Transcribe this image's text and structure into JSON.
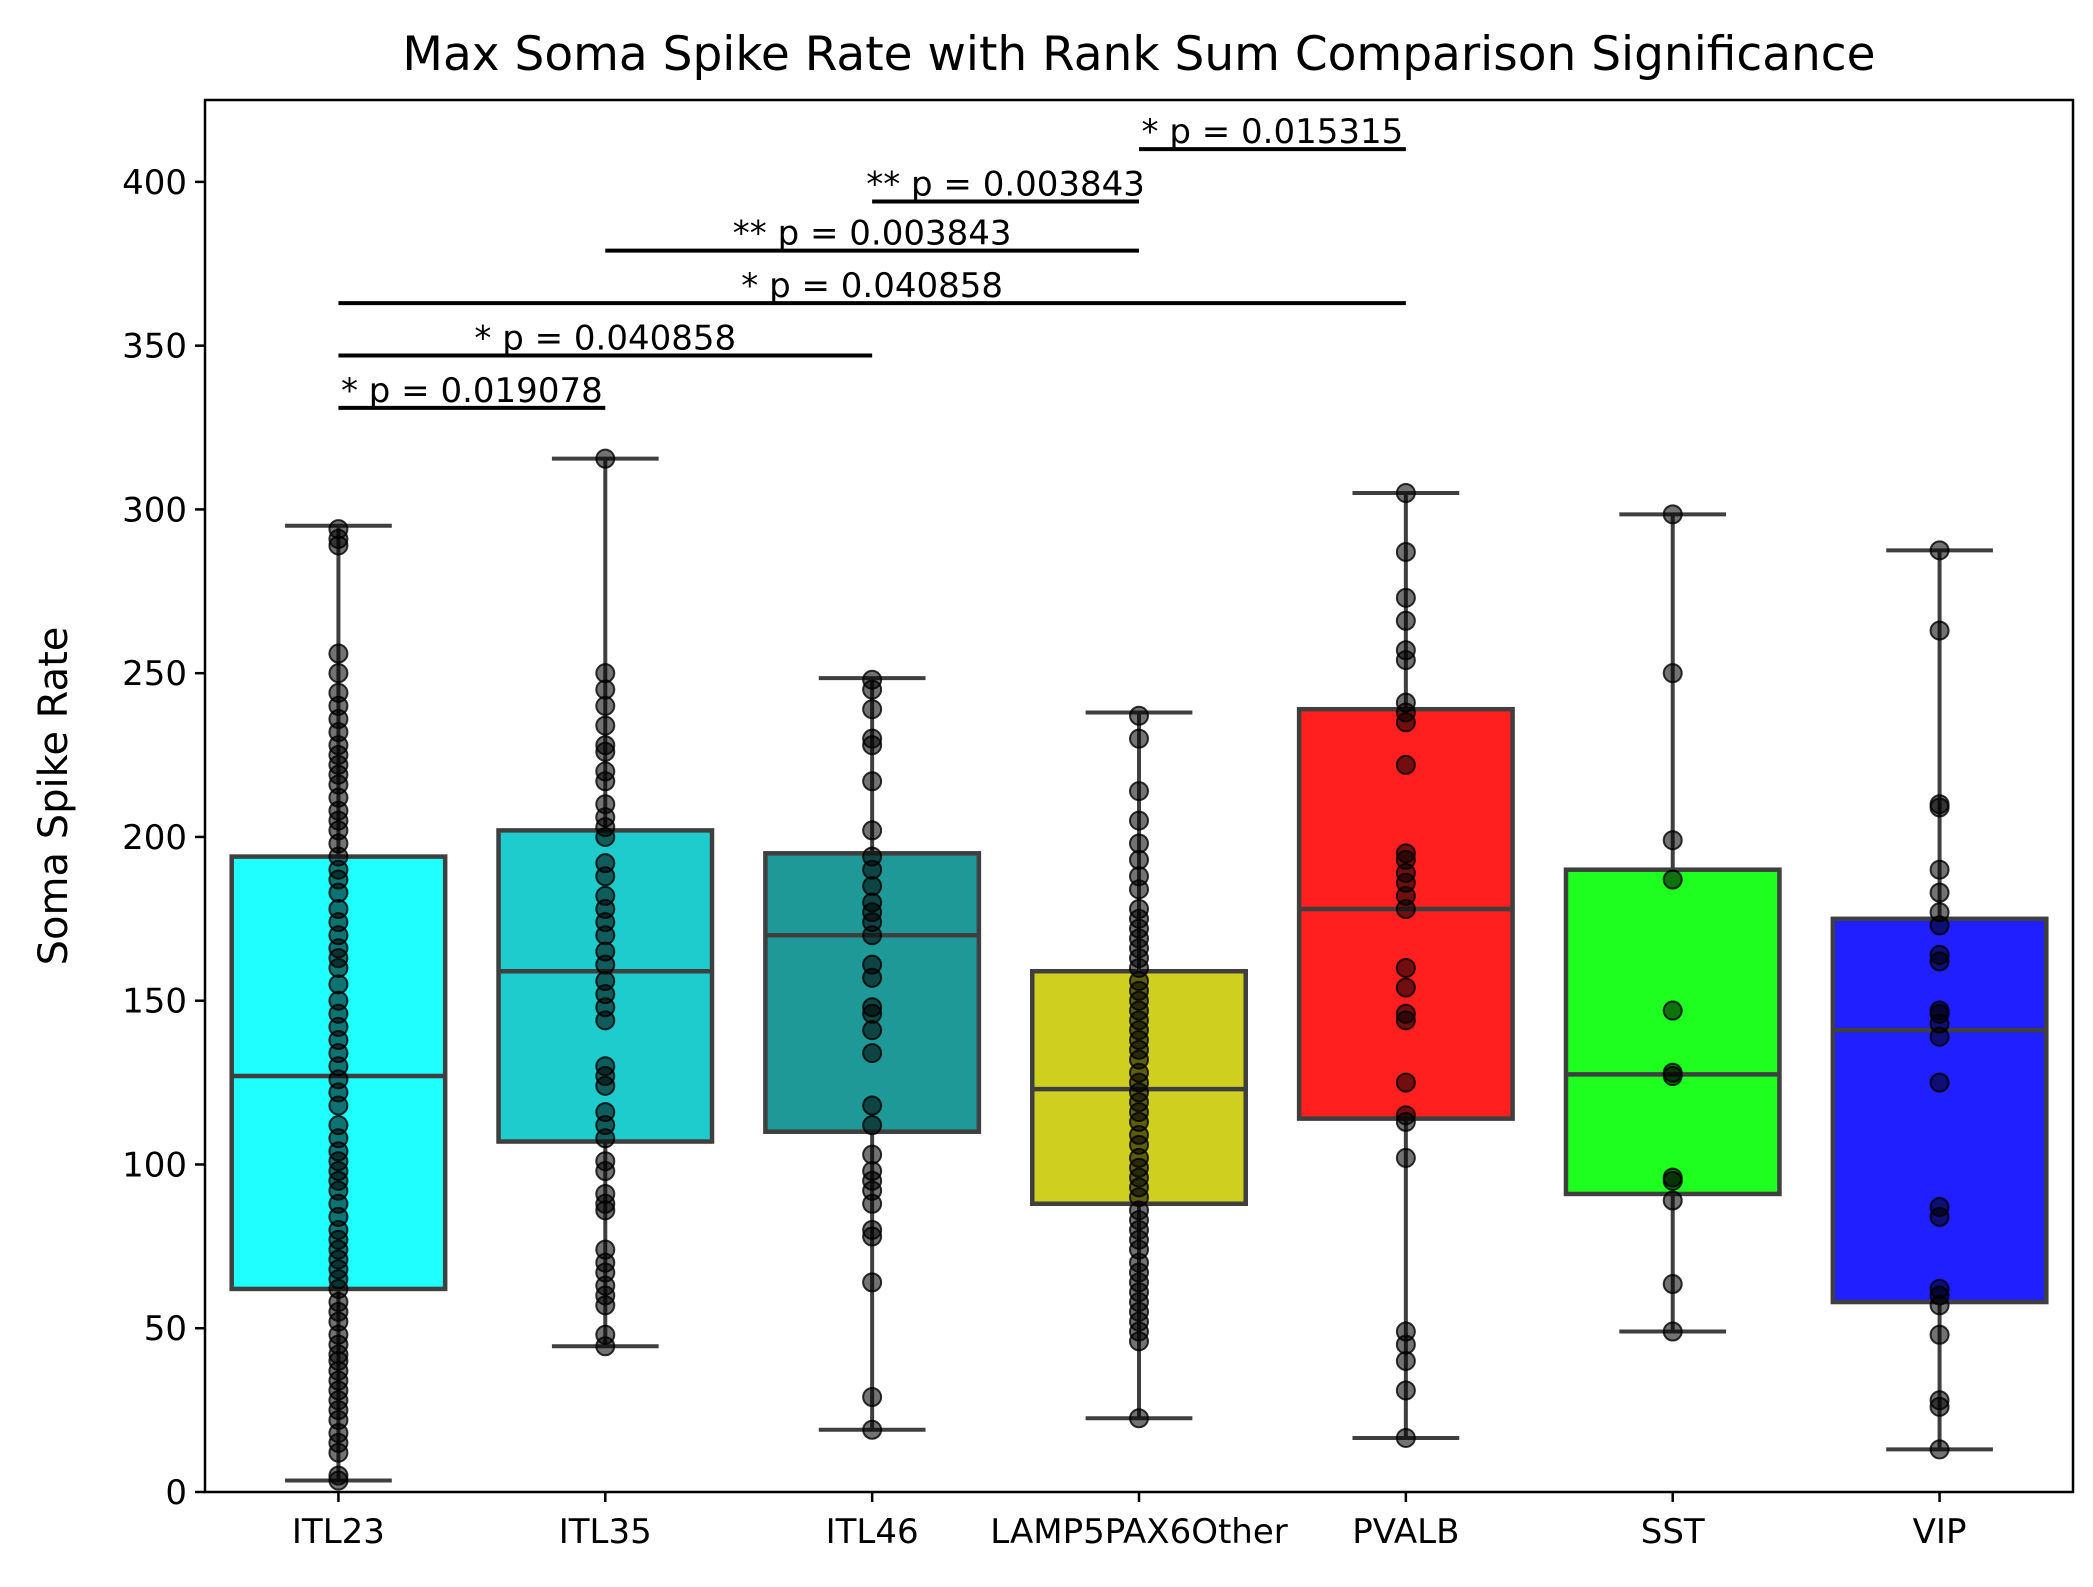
{
  "chart_data": {
    "type": "box",
    "title": "Max Soma Spike Rate with Rank Sum Comparison Significance",
    "xlabel": "",
    "ylabel": "Soma Spike Rate",
    "ylim": [
      0,
      425
    ],
    "yticks": [
      0,
      50,
      100,
      150,
      200,
      250,
      300,
      350,
      400
    ],
    "grid": false,
    "categories": [
      "ITL23",
      "ITL35",
      "ITL46",
      "LAMP5PAX6Other",
      "PVALB",
      "SST",
      "VIP"
    ],
    "colors": [
      "#00ffff",
      "#00c5c6",
      "#008b8a",
      "#c8c800",
      "#ff0000",
      "#00ff00",
      "#0000ff"
    ],
    "boxes": [
      {
        "category": "ITL23",
        "whisker_low": 3.5,
        "q1": 62,
        "median": 127,
        "q3": 194,
        "whisker_high": 295
      },
      {
        "category": "ITL35",
        "whisker_low": 44.5,
        "q1": 107,
        "median": 159,
        "q3": 202,
        "whisker_high": 315.5
      },
      {
        "category": "ITL46",
        "whisker_low": 19,
        "q1": 110,
        "median": 170,
        "q3": 195,
        "whisker_high": 248.5
      },
      {
        "category": "LAMP5PAX6Other",
        "whisker_low": 22.5,
        "q1": 88,
        "median": 123,
        "q3": 159,
        "whisker_high": 238
      },
      {
        "category": "PVALB",
        "whisker_low": 16.5,
        "q1": 114,
        "median": 178,
        "q3": 239,
        "whisker_high": 305
      },
      {
        "category": "SST",
        "whisker_low": 49,
        "q1": 91,
        "median": 127.5,
        "q3": 190,
        "whisker_high": 298.5
      },
      {
        "category": "VIP",
        "whisker_low": 13,
        "q1": 58,
        "median": 141,
        "q3": 175,
        "whisker_high": 287.5
      }
    ],
    "points": [
      {
        "category": "ITL23",
        "values": [
          3.5,
          5,
          12,
          15,
          18,
          22,
          25,
          28,
          31,
          34,
          37,
          40,
          42,
          45,
          48,
          52,
          55,
          58,
          62,
          65,
          68,
          71,
          74,
          77,
          80,
          84,
          88,
          92,
          95,
          98,
          101,
          104,
          108,
          112,
          118,
          122,
          126,
          130,
          134,
          138,
          142,
          146,
          150,
          155,
          160,
          163,
          166,
          170,
          174,
          178,
          183,
          187,
          190,
          194,
          198,
          202,
          205,
          208,
          212,
          216,
          219,
          222,
          225,
          228,
          232,
          236,
          240,
          244,
          250,
          256,
          289,
          291,
          294
        ]
      },
      {
        "category": "ITL35",
        "values": [
          44.5,
          48,
          57,
          60,
          63,
          67,
          70,
          74,
          86,
          88,
          91,
          98,
          101,
          108,
          112,
          116,
          124,
          127,
          130,
          144,
          148,
          152,
          156,
          161,
          165,
          170,
          174,
          178,
          182,
          188,
          192,
          200,
          203,
          206,
          210,
          217,
          220,
          226,
          228,
          234,
          240,
          245,
          250,
          315.5
        ]
      },
      {
        "category": "ITL46",
        "values": [
          19,
          29,
          64,
          78,
          80,
          88,
          92,
          95,
          98,
          103,
          112,
          118,
          134,
          141,
          146,
          148,
          157,
          161,
          170,
          174,
          177,
          180,
          185,
          190,
          194,
          202,
          217,
          228,
          230,
          239,
          245,
          248
        ]
      },
      {
        "category": "LAMP5PAX6Other",
        "values": [
          22.5,
          46,
          49,
          52,
          55,
          58,
          61,
          64,
          67,
          70,
          74,
          77,
          80,
          83,
          86,
          90,
          93,
          96,
          99,
          102,
          106,
          109,
          113,
          116,
          119,
          122,
          125,
          128,
          132,
          135,
          138,
          141,
          144,
          147,
          150,
          153,
          156,
          160,
          163,
          166,
          169,
          172,
          175,
          178,
          184,
          188,
          193,
          198,
          205,
          214,
          230,
          237
        ]
      },
      {
        "category": "PVALB",
        "values": [
          16.5,
          31,
          40,
          45,
          49,
          102,
          113,
          115,
          125,
          144,
          146,
          154,
          160,
          178,
          182,
          186,
          189,
          193,
          195,
          222,
          235,
          238,
          241,
          254,
          257,
          266,
          273,
          287,
          305
        ]
      },
      {
        "category": "SST",
        "values": [
          49,
          63.5,
          89,
          95,
          96,
          127,
          128,
          147,
          187,
          199,
          250,
          298.5
        ]
      },
      {
        "category": "VIP",
        "values": [
          13,
          26,
          28,
          48,
          57,
          60,
          62,
          84,
          87,
          125,
          139,
          143,
          146,
          147,
          162,
          164,
          173,
          177,
          183,
          190,
          209,
          210,
          263,
          287.5
        ]
      }
    ],
    "annotations": [
      {
        "from": "ITL23",
        "to": "ITL35",
        "y": 331,
        "label": "* p = 0.019078"
      },
      {
        "from": "ITL23",
        "to": "ITL46",
        "y": 347,
        "label": "* p = 0.040858"
      },
      {
        "from": "ITL23",
        "to": "PVALB",
        "y": 363,
        "label": "* p = 0.040858"
      },
      {
        "from": "ITL35",
        "to": "LAMP5PAX6Other",
        "y": 379,
        "label": "** p = 0.003843"
      },
      {
        "from": "ITL46",
        "to": "LAMP5PAX6Other",
        "y": 394,
        "label": "** p = 0.003843"
      },
      {
        "from": "LAMP5PAX6Other",
        "to": "PVALB",
        "y": 410,
        "label": "* p = 0.015315"
      }
    ]
  }
}
